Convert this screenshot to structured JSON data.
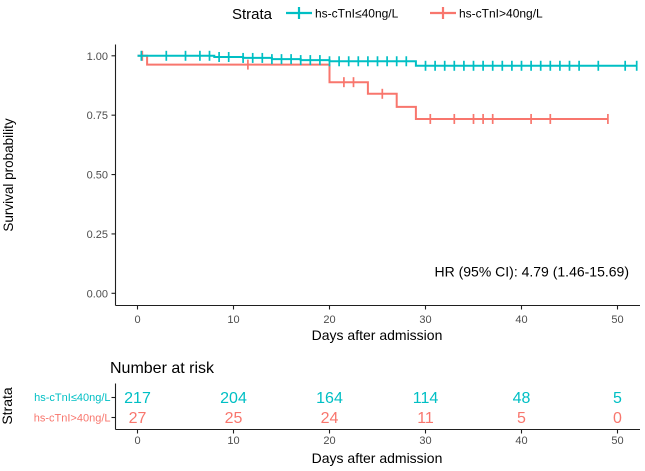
{
  "chart_data": {
    "type": "line",
    "subtype": "kaplan-meier-step",
    "legend": {
      "position": "top",
      "title": "Strata",
      "entries": [
        {
          "label": "hs-cTnI≤40ng/L",
          "color": "#00BFC4"
        },
        {
          "label": "hs-cTnI>40ng/L",
          "color": "#F8766D"
        }
      ]
    },
    "xlabel": "Days after admission",
    "ylabel": "Survival probability",
    "xlim": [
      0,
      52.5
    ],
    "ylim": [
      0,
      1.05
    ],
    "xticks": [
      0,
      10,
      20,
      30,
      40,
      50
    ],
    "yticks": {
      "values": [
        0,
        0.25,
        0.5,
        0.75,
        1
      ],
      "labels": [
        "0.00",
        "0.25",
        "0.50",
        "0.75",
        "1.00"
      ]
    },
    "grid": false,
    "annotation": "HR (95% CI): 4.79 (1.46-15.69)",
    "series": [
      {
        "name": "hs-cTnI≤40ng/L",
        "color": "#00BFC4",
        "steps": [
          [
            0,
            1.0
          ],
          [
            8,
            0.995
          ],
          [
            11,
            0.991
          ],
          [
            14,
            0.986
          ],
          [
            17,
            0.982
          ],
          [
            20,
            0.977
          ],
          [
            29,
            0.958
          ],
          [
            52,
            0.958
          ]
        ],
        "censor_days": [
          0.4,
          3,
          5,
          6.5,
          7.5,
          8.5,
          9.5,
          11,
          12,
          13,
          14,
          15,
          16,
          17,
          18,
          19,
          20,
          21,
          22,
          23,
          24,
          25,
          26,
          27,
          28,
          30,
          31,
          32,
          33,
          34,
          35,
          36,
          37,
          38,
          39,
          40,
          41,
          42,
          43,
          44,
          45,
          46,
          48,
          50.8,
          52
        ]
      },
      {
        "name": "hs-cTnI>40ng/L",
        "color": "#F8766D",
        "steps": [
          [
            0,
            1.0
          ],
          [
            1,
            0.963
          ],
          [
            20,
            0.889
          ],
          [
            24,
            0.84
          ],
          [
            27,
            0.785
          ],
          [
            29,
            0.734
          ],
          [
            49,
            0.734
          ]
        ],
        "censor_days": [
          0.5,
          11.5,
          21.5,
          22.5,
          25.5,
          30.5,
          33,
          35,
          36,
          37,
          41,
          43,
          49
        ]
      }
    ],
    "risk_table": {
      "title": "Number at risk",
      "axis_label": "Strata",
      "xlabel": "Days after admission",
      "xticks": [
        0,
        10,
        20,
        30,
        40,
        50
      ],
      "rows": [
        {
          "label": "hs-cTnI≤40ng/L",
          "color": "#00BFC4",
          "values": [
            217,
            204,
            164,
            114,
            48,
            5
          ]
        },
        {
          "label": "hs-cTnI>40ng/L",
          "color": "#F8766D",
          "values": [
            27,
            25,
            24,
            11,
            5,
            0
          ]
        }
      ]
    }
  }
}
